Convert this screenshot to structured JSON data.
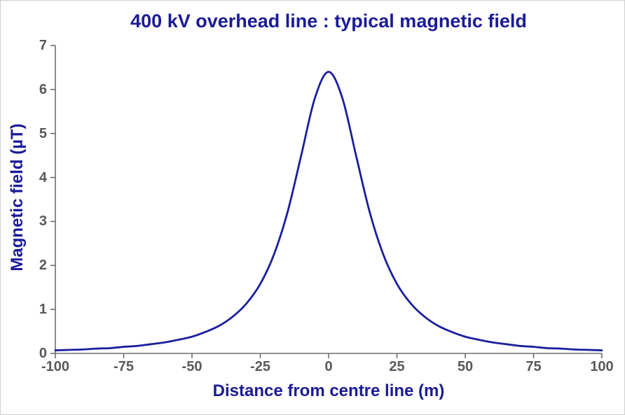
{
  "chart": {
    "title": "400 kV overhead line : typical magnetic field",
    "xlabel": "Distance from centre line (m)",
    "ylabel": "Magnetic field (µT)"
  },
  "colors": {
    "title_navy": "#1b1b96",
    "curve_navy": "#1b1f9c",
    "tick_label_gray": "#595959",
    "axis_gray": "#6e6e6e",
    "background": "#ffffff",
    "page_border": "#cfcfcf"
  },
  "chart_data": {
    "type": "line",
    "title": "400 kV overhead line : typical magnetic field",
    "xlabel": "Distance from centre line (m)",
    "ylabel": "Magnetic field (µT)",
    "xlim": [
      -100,
      100
    ],
    "ylim": [
      0,
      7
    ],
    "x_ticks": [
      -100,
      -75,
      -50,
      -25,
      0,
      25,
      50,
      75,
      100
    ],
    "y_ticks": [
      0,
      1,
      2,
      3,
      4,
      5,
      6,
      7
    ],
    "grid": false,
    "legend": false,
    "peak": {
      "x": 0,
      "y": 6.4
    },
    "series": [
      {
        "name": "typical magnetic field",
        "color": "#1b1f9c",
        "x": [
          -100,
          -95,
          -90,
          -85,
          -80,
          -75,
          -70,
          -65,
          -60,
          -55,
          -50,
          -45,
          -40,
          -35,
          -30,
          -25,
          -20,
          -15,
          -10,
          -5,
          0,
          5,
          10,
          15,
          20,
          25,
          30,
          35,
          40,
          45,
          50,
          55,
          60,
          65,
          70,
          75,
          80,
          85,
          90,
          95,
          100
        ],
        "y": [
          0.07,
          0.08,
          0.09,
          0.11,
          0.12,
          0.15,
          0.17,
          0.21,
          0.25,
          0.31,
          0.38,
          0.49,
          0.63,
          0.84,
          1.14,
          1.58,
          2.25,
          3.22,
          4.51,
          5.81,
          6.4,
          5.81,
          4.51,
          3.22,
          2.25,
          1.58,
          1.14,
          0.84,
          0.63,
          0.49,
          0.38,
          0.31,
          0.25,
          0.21,
          0.17,
          0.15,
          0.12,
          0.11,
          0.09,
          0.08,
          0.07
        ]
      }
    ]
  }
}
